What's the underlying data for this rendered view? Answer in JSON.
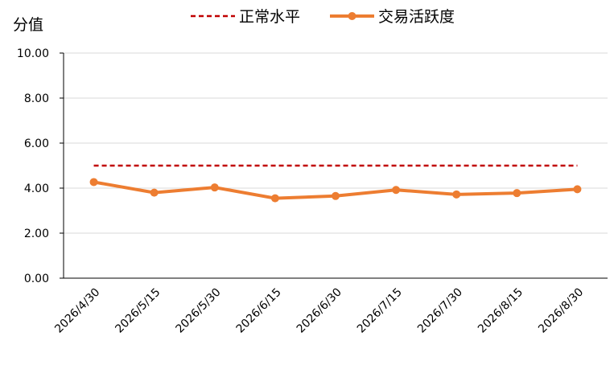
{
  "chart_data": {
    "type": "line",
    "y_label": "分值",
    "categories": [
      "2026/4/30",
      "2026/5/15",
      "2026/5/30",
      "2026/6/15",
      "2026/6/30",
      "2026/7/15",
      "2026/7/30",
      "2026/8/15",
      "2026/8/30"
    ],
    "series": [
      {
        "name": "正常水平",
        "color": "#c00000",
        "dashed": true,
        "values": [
          5,
          5,
          5,
          5,
          5,
          5,
          5,
          5,
          5
        ]
      },
      {
        "name": "交易活跃度",
        "color": "#ed7d31",
        "markers": true,
        "values": [
          4.27,
          3.8,
          4.03,
          3.55,
          3.65,
          3.92,
          3.72,
          3.78,
          3.95
        ]
      }
    ],
    "ylim": [
      0,
      10
    ],
    "yticks": [
      {
        "value": 0,
        "label": "0.00"
      },
      {
        "value": 2,
        "label": "2.00"
      },
      {
        "value": 4,
        "label": "4.00"
      },
      {
        "value": 6,
        "label": "6.00"
      },
      {
        "value": 8,
        "label": "8.00"
      },
      {
        "value": 10,
        "label": "10.00"
      }
    ],
    "grid": true,
    "legend": "top"
  }
}
